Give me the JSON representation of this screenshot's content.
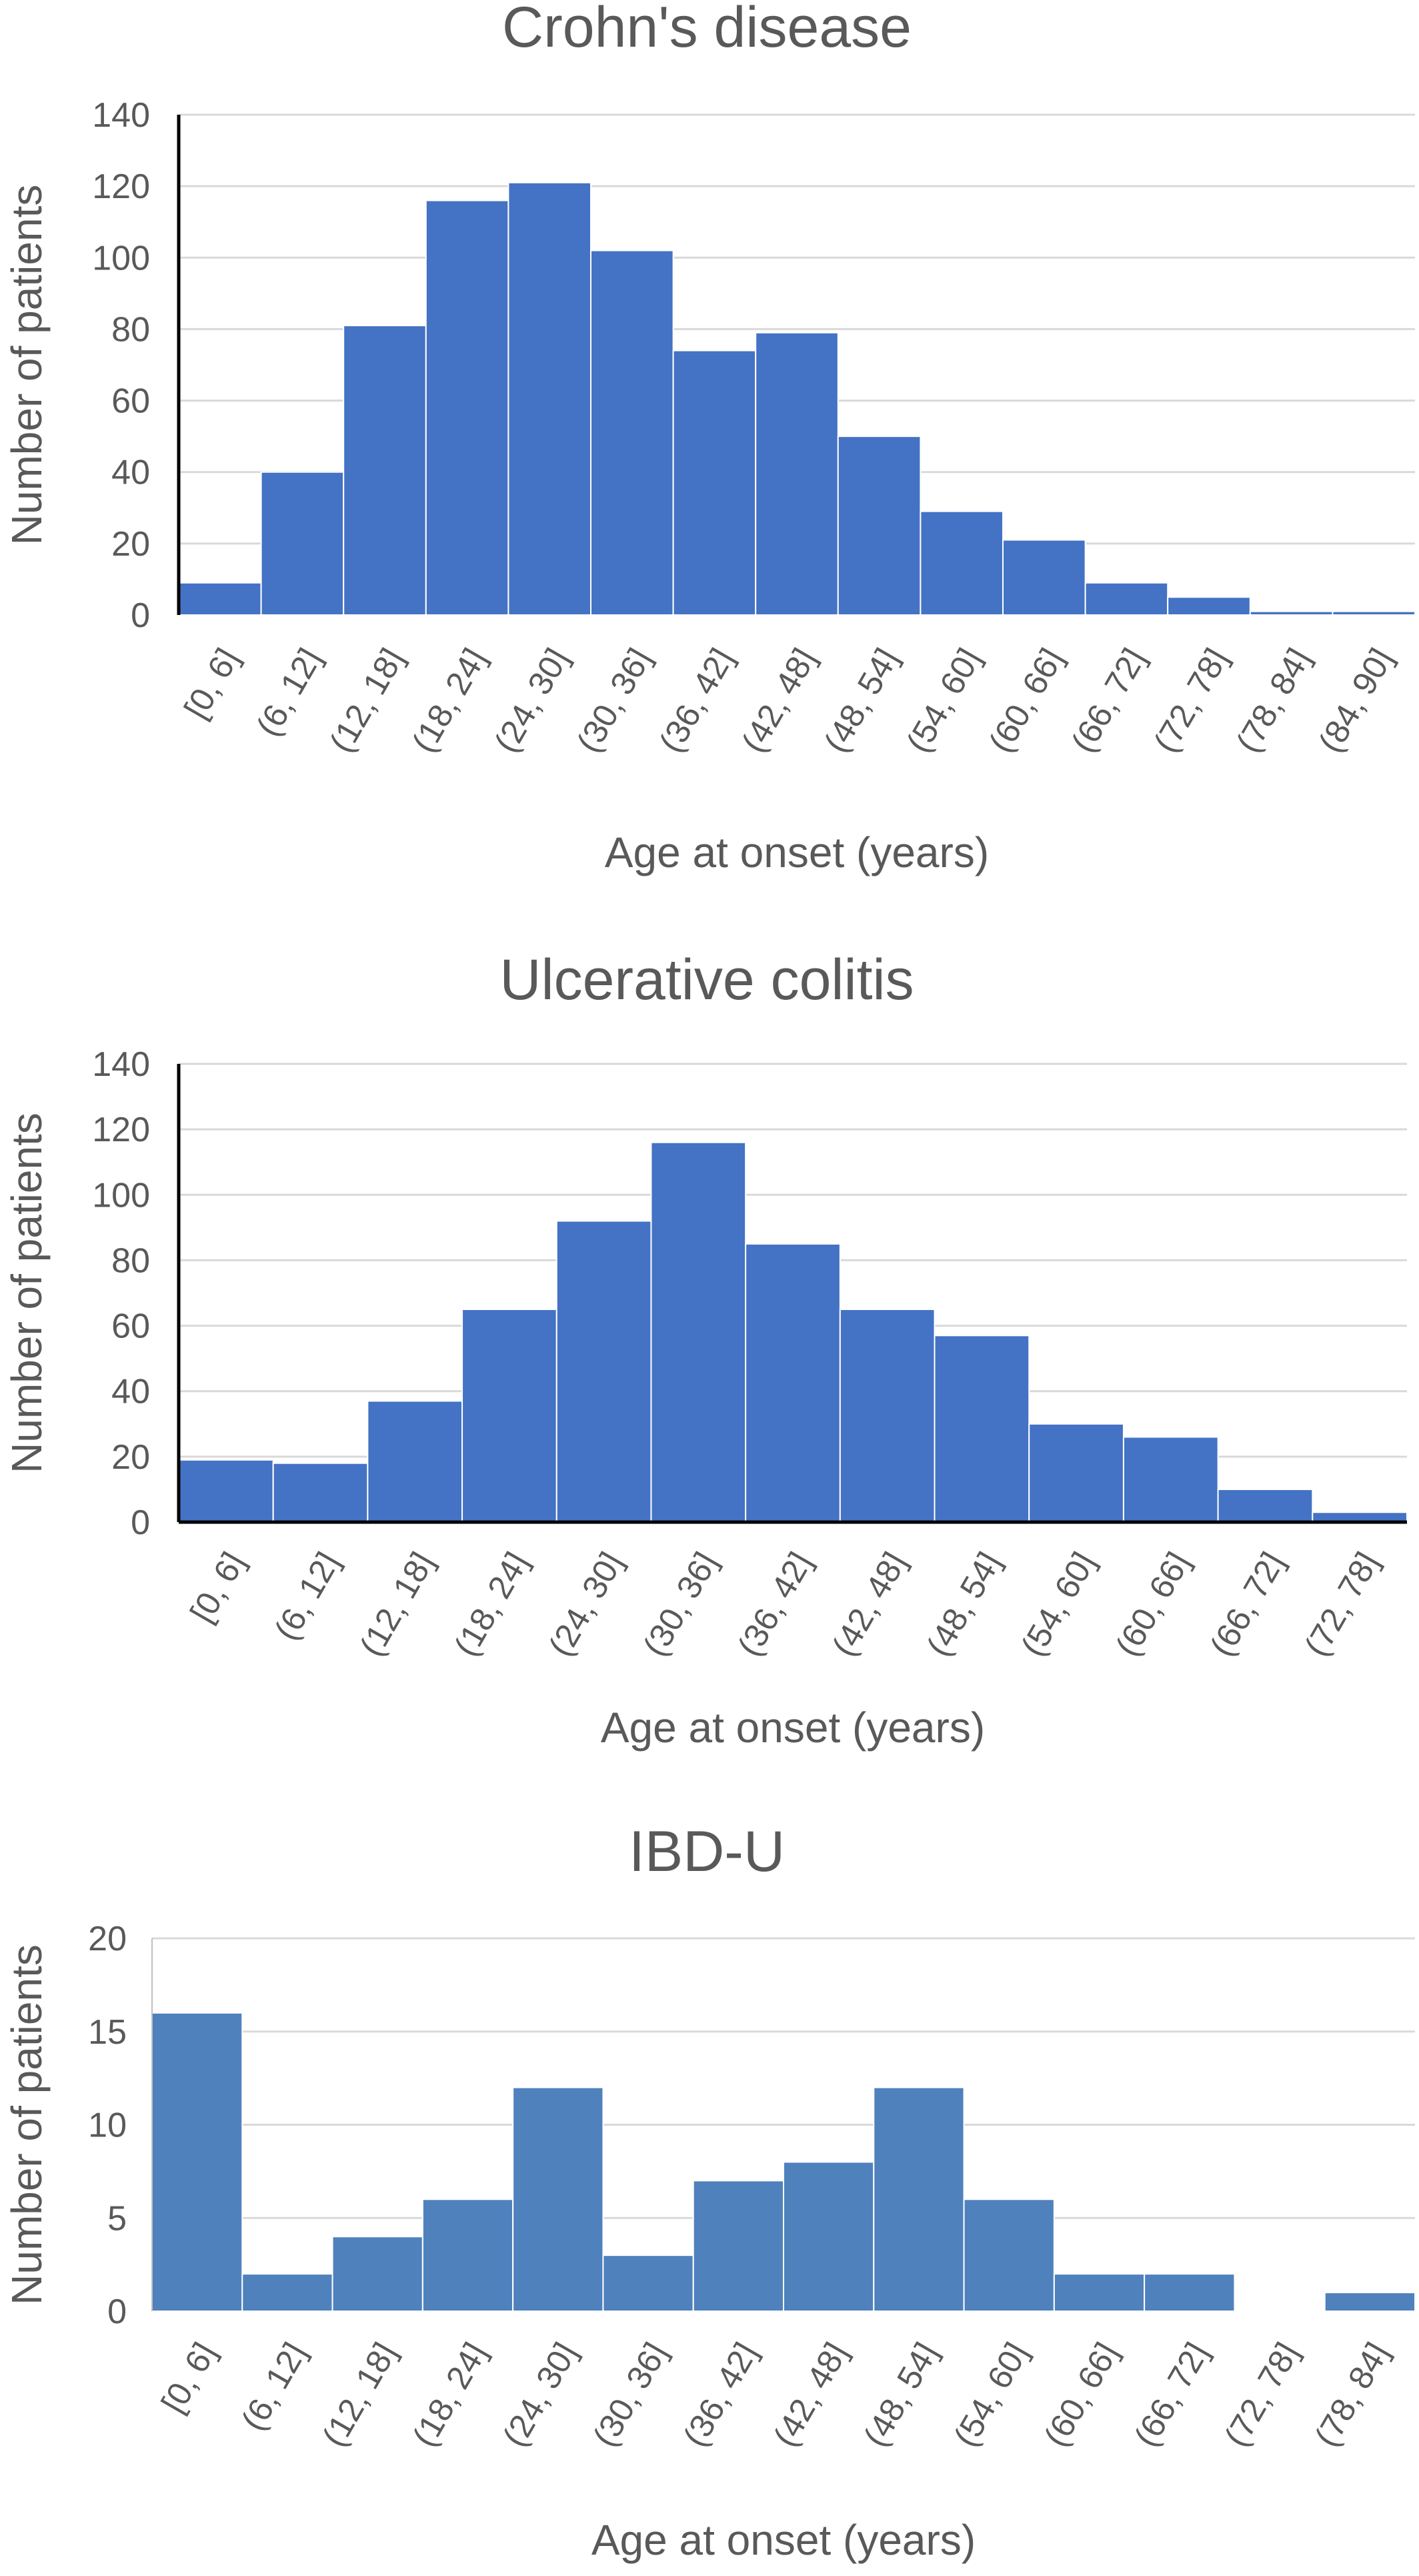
{
  "chart_data": [
    {
      "type": "bar",
      "title": "Crohn's disease",
      "xlabel": "Age at onset (years)",
      "ylabel": "Number of patients",
      "ylim": [
        0,
        140
      ],
      "yticks": [
        0,
        20,
        40,
        60,
        80,
        100,
        120,
        140
      ],
      "grid": true,
      "color": "#4472c4",
      "categories": [
        "[0, 6]",
        "(6, 12]",
        "(12, 18]",
        "(18, 24]",
        "(24, 30]",
        "(30, 36]",
        "(36, 42]",
        "(42, 48]",
        "(48, 54]",
        "(54, 60]",
        "(60, 66]",
        "(66, 72]",
        "(72, 78]",
        "(78, 84]",
        "(84, 90]"
      ],
      "values": [
        9,
        40,
        81,
        116,
        121,
        102,
        74,
        79,
        50,
        29,
        21,
        9,
        5,
        1,
        1
      ]
    },
    {
      "type": "bar",
      "title": "Ulcerative colitis",
      "xlabel": "Age at onset (years)",
      "ylabel": "Number of patients",
      "ylim": [
        0,
        140
      ],
      "yticks": [
        0,
        20,
        40,
        60,
        80,
        100,
        120,
        140
      ],
      "grid": true,
      "color": "#4472c4",
      "categories": [
        "[0, 6]",
        "(6, 12]",
        "(12, 18]",
        "(18, 24]",
        "(24, 30]",
        "(30, 36]",
        "(36, 42]",
        "(42, 48]",
        "(48, 54]",
        "(54, 60]",
        "(60, 66]",
        "(66, 72]",
        "(72, 78]"
      ],
      "values": [
        19,
        18,
        37,
        65,
        92,
        116,
        85,
        65,
        57,
        30,
        26,
        10,
        3
      ]
    },
    {
      "type": "bar",
      "title": "IBD-U",
      "xlabel": "Age at onset (years)",
      "ylabel": "Number of patients",
      "ylim": [
        0,
        20
      ],
      "yticks": [
        0,
        5,
        10,
        15,
        20
      ],
      "grid": true,
      "color": "#4f81bd",
      "categories": [
        "[0, 6]",
        "(6, 12]",
        "(12, 18]",
        "(18, 24]",
        "(24, 30]",
        "(30, 36]",
        "(36, 42]",
        "(42, 48]",
        "(48, 54]",
        "(54, 60]",
        "(60, 66]",
        "(66, 72]",
        "(72, 78]",
        "(78, 84]"
      ],
      "values": [
        16,
        2,
        4,
        6,
        12,
        3,
        7,
        8,
        12,
        6,
        2,
        2,
        0,
        1
      ]
    }
  ]
}
